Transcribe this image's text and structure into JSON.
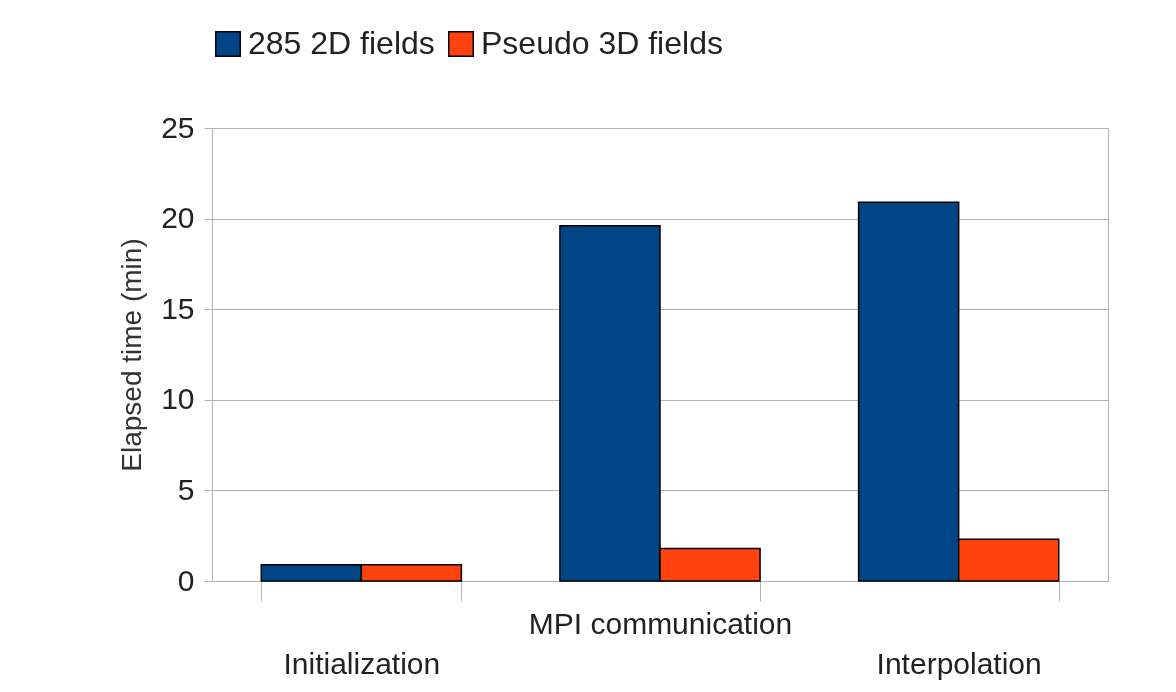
{
  "chart_data": {
    "type": "bar",
    "ylabel": "Elapsed time (min)",
    "categories": [
      "Initialization",
      "MPI communication",
      "Interpolation"
    ],
    "series": [
      {
        "name": "285 2D fields",
        "color": "#004586",
        "values": [
          0.9,
          19.6,
          20.9
        ]
      },
      {
        "name": "Pseudo 3D fields",
        "color": "#ff420e",
        "values": [
          0.9,
          1.8,
          2.3
        ]
      }
    ],
    "ylim": [
      0,
      25
    ],
    "yticks": [
      0,
      5,
      10,
      15,
      20,
      25
    ],
    "grid": "y",
    "legend": "top"
  }
}
